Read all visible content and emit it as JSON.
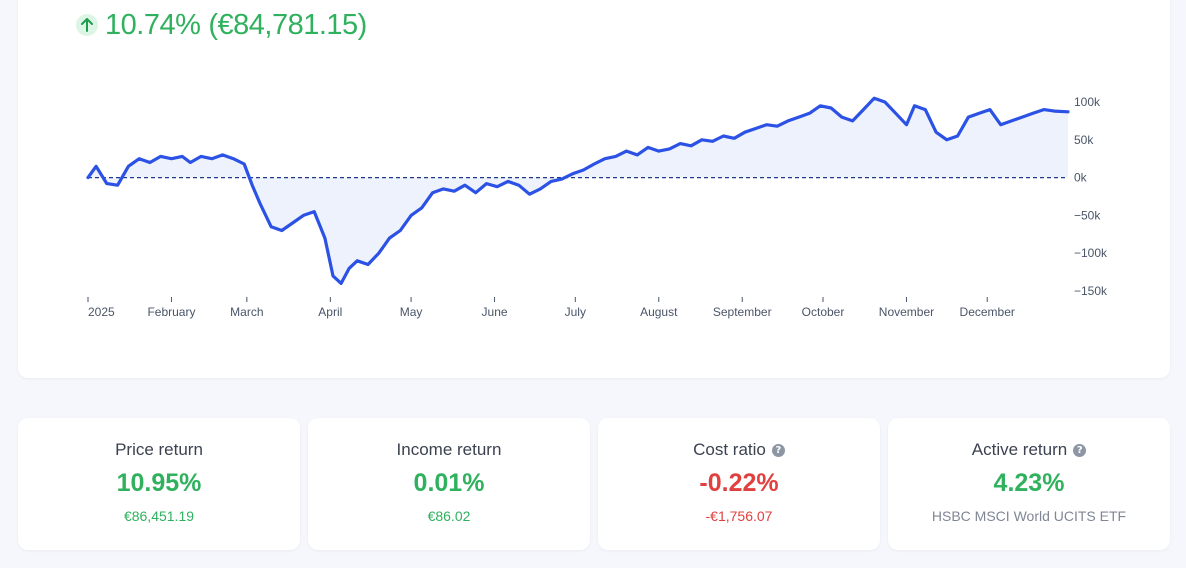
{
  "headline": {
    "percent": "10.74%",
    "amount": "(€84,781.15)",
    "direction_icon": "arrow-up-icon"
  },
  "chart_data": {
    "type": "line",
    "x_tick_labels": [
      "2025",
      "February",
      "March",
      "April",
      "May",
      "June",
      "July",
      "August",
      "September",
      "October",
      "November",
      "December"
    ],
    "y_tick_labels": [
      "100k",
      "50k",
      "0k",
      "−50k",
      "−100k",
      "−150k"
    ],
    "y_ticks": [
      100000,
      50000,
      0,
      -50000,
      -100000,
      -150000
    ],
    "ylim": [
      -150000,
      100000
    ],
    "baseline": 0,
    "line_color": "#2b52e5",
    "fill_color": "#eef2fd",
    "series": [
      {
        "name": "",
        "x": [
          "2025-01-01",
          "2025-01-04",
          "2025-01-08",
          "2025-01-12",
          "2025-01-16",
          "2025-01-20",
          "2025-01-24",
          "2025-01-28",
          "2025-02-01",
          "2025-02-05",
          "2025-02-08",
          "2025-02-12",
          "2025-02-16",
          "2025-02-20",
          "2025-02-24",
          "2025-02-28",
          "2025-03-03",
          "2025-03-06",
          "2025-03-10",
          "2025-03-14",
          "2025-03-18",
          "2025-03-22",
          "2025-03-26",
          "2025-03-30",
          "2025-04-02",
          "2025-04-05",
          "2025-04-08",
          "2025-04-11",
          "2025-04-15",
          "2025-04-19",
          "2025-04-23",
          "2025-04-27",
          "2025-05-01",
          "2025-05-05",
          "2025-05-09",
          "2025-05-13",
          "2025-05-17",
          "2025-05-21",
          "2025-05-25",
          "2025-05-29",
          "2025-06-02",
          "2025-06-06",
          "2025-06-10",
          "2025-06-14",
          "2025-06-18",
          "2025-06-22",
          "2025-06-26",
          "2025-06-30",
          "2025-07-04",
          "2025-07-08",
          "2025-07-12",
          "2025-07-16",
          "2025-07-20",
          "2025-07-24",
          "2025-07-28",
          "2025-08-01",
          "2025-08-05",
          "2025-08-09",
          "2025-08-13",
          "2025-08-17",
          "2025-08-21",
          "2025-08-25",
          "2025-08-29",
          "2025-09-02",
          "2025-09-06",
          "2025-09-10",
          "2025-09-14",
          "2025-09-18",
          "2025-09-22",
          "2025-09-26",
          "2025-09-30",
          "2025-10-04",
          "2025-10-08",
          "2025-10-12",
          "2025-10-16",
          "2025-10-20",
          "2025-10-24",
          "2025-10-28",
          "2025-11-01",
          "2025-11-04",
          "2025-11-08",
          "2025-11-12",
          "2025-11-16",
          "2025-11-20",
          "2025-11-24",
          "2025-11-28",
          "2025-12-02",
          "2025-12-06",
          "2025-12-10",
          "2025-12-14",
          "2025-12-18",
          "2025-12-22",
          "2025-12-26",
          "2025-12-31"
        ],
        "values": [
          0,
          15000,
          -8000,
          -10000,
          15000,
          25000,
          20000,
          28000,
          25000,
          28000,
          20000,
          28000,
          25000,
          30000,
          25000,
          18000,
          -10000,
          -35000,
          -65000,
          -70000,
          -60000,
          -50000,
          -45000,
          -80000,
          -130000,
          -140000,
          -120000,
          -110000,
          -115000,
          -100000,
          -80000,
          -70000,
          -50000,
          -40000,
          -20000,
          -15000,
          -18000,
          -10000,
          -20000,
          -8000,
          -12000,
          -5000,
          -10000,
          -22000,
          -15000,
          -5000,
          -2000,
          5000,
          10000,
          18000,
          25000,
          28000,
          35000,
          30000,
          40000,
          35000,
          38000,
          45000,
          42000,
          50000,
          48000,
          55000,
          52000,
          60000,
          65000,
          70000,
          68000,
          75000,
          80000,
          85000,
          95000,
          92000,
          80000,
          75000,
          90000,
          105000,
          100000,
          85000,
          70000,
          95000,
          90000,
          60000,
          50000,
          55000,
          80000,
          85000,
          90000,
          70000,
          75000,
          80000,
          85000,
          90000,
          88000,
          87000
        ]
      }
    ]
  },
  "stats": [
    {
      "title": "Price return",
      "value": "10.95%",
      "sub": "€86,451.19",
      "has_help": false,
      "tone": "green",
      "sub_tone": "green"
    },
    {
      "title": "Income return",
      "value": "0.01%",
      "sub": "€86.02",
      "has_help": false,
      "tone": "green",
      "sub_tone": "green"
    },
    {
      "title": "Cost ratio",
      "value": "-0.22%",
      "sub": "-€1,756.07",
      "has_help": true,
      "tone": "red",
      "sub_tone": "red"
    },
    {
      "title": "Active return",
      "value": "4.23%",
      "sub": "HSBC MSCI World UCITS ETF",
      "has_help": true,
      "tone": "green",
      "sub_tone": "muted"
    }
  ],
  "colors": {
    "positive": "#2fb15e",
    "negative": "#e0413f",
    "muted": "#7f8795"
  }
}
